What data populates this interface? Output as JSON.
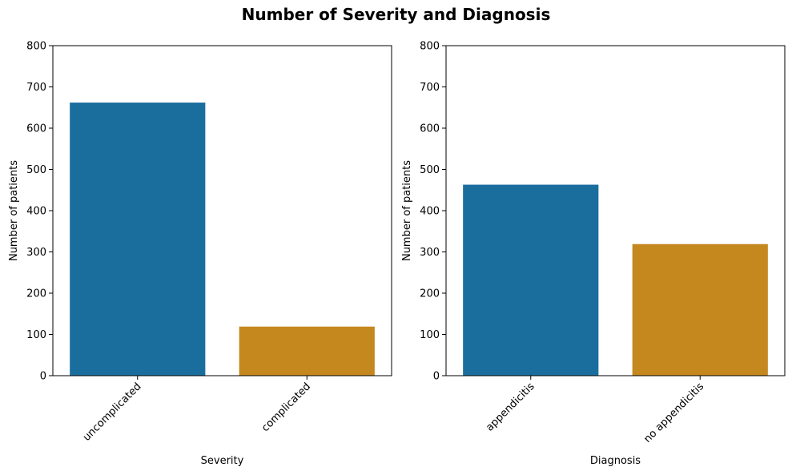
{
  "figure": {
    "title": "Number of Severity and Diagnosis"
  },
  "chart_data": [
    {
      "type": "bar",
      "categories": [
        "uncomplicated",
        "complicated"
      ],
      "values": [
        662,
        119
      ],
      "colors": [
        "#1a6e9e",
        "#c4881f"
      ],
      "xlabel": "Severity",
      "ylabel": "Number of patients",
      "ylim": [
        0,
        800
      ],
      "yticks": [
        0,
        100,
        200,
        300,
        400,
        500,
        600,
        700,
        800
      ],
      "grid": false
    },
    {
      "type": "bar",
      "categories": [
        "appendicitis",
        "no appendicitis"
      ],
      "values": [
        463,
        319
      ],
      "colors": [
        "#1a6e9e",
        "#c4881f"
      ],
      "xlabel": "Diagnosis",
      "ylabel": "Number of patients",
      "ylim": [
        0,
        800
      ],
      "yticks": [
        0,
        100,
        200,
        300,
        400,
        500,
        600,
        700,
        800
      ],
      "grid": false
    }
  ]
}
